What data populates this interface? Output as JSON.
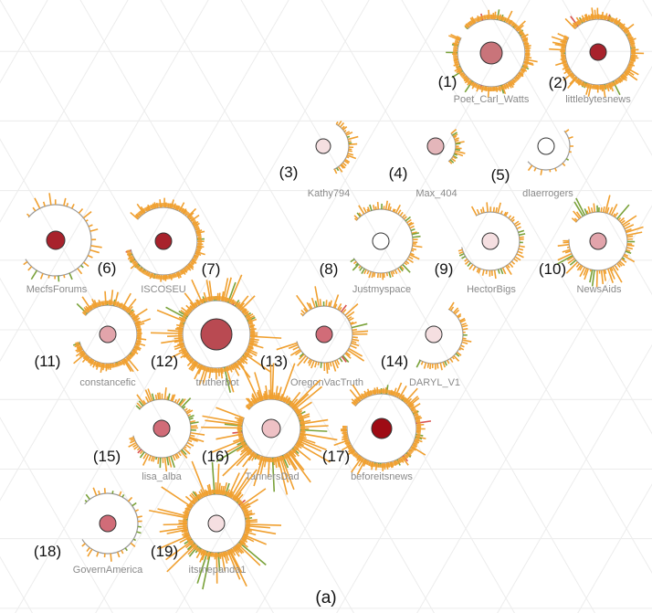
{
  "caption": "(a)",
  "colors": {
    "ring": "#999999",
    "spike_orange": "#f0a030",
    "spike_green": "#7aa23a",
    "spike_red": "#d9534f",
    "background_grid": "#ececec"
  },
  "nodes": [
    {
      "num": "(1)",
      "label": "Poet_Carl_Watts",
      "fill": "#c9747a",
      "coverage": 0.95,
      "density": 0.9
    },
    {
      "num": "(2)",
      "label": "littlebytesnews",
      "fill": "#a8222c",
      "coverage": 0.95,
      "density": 1.0
    },
    {
      "num": "(3)",
      "label": "Kathy794",
      "fill": "#f5dfe1",
      "coverage": 0.35,
      "density": 0.5
    },
    {
      "num": "(4)",
      "label": "Max_404",
      "fill": "#e4b6ba",
      "coverage": 0.25,
      "density": 0.4
    },
    {
      "num": "(5)",
      "label": "dlaerrogers",
      "fill": "#ffffff",
      "coverage": 0.5,
      "density": 0.05
    },
    {
      "num": "(6)",
      "label": "MecfsForums",
      "fill": "#a8222c",
      "coverage": 0.8,
      "density": 0.25
    },
    {
      "num": "(7)",
      "label": "ISCOSEU",
      "fill": "#a8222c",
      "coverage": 0.85,
      "density": 0.9
    },
    {
      "num": "(8)",
      "label": "Justmyspace",
      "fill": "#ffffff",
      "coverage": 0.8,
      "density": 0.7
    },
    {
      "num": "(9)",
      "label": "HectorBigs",
      "fill": "#f5dfe1",
      "coverage": 0.8,
      "density": 0.5
    },
    {
      "num": "(10)",
      "label": "NewsAids",
      "fill": "#e2a4ab",
      "coverage": 0.9,
      "density": 0.7
    },
    {
      "num": "(11)",
      "label": "constancefic",
      "fill": "#e2a4ab",
      "coverage": 0.85,
      "density": 0.85
    },
    {
      "num": "(12)",
      "label": "trutherbot",
      "fill": "#b94a52",
      "coverage": 1.0,
      "density": 1.0
    },
    {
      "num": "(13)",
      "label": "OregonVacTruth",
      "fill": "#d16c78",
      "coverage": 0.85,
      "density": 0.6
    },
    {
      "num": "(14)",
      "label": "DARYL_V1",
      "fill": "#f5dfe1",
      "coverage": 0.5,
      "density": 0.5
    },
    {
      "num": "(15)",
      "label": "lisa_alba",
      "fill": "#d16c78",
      "coverage": 0.85,
      "density": 0.7
    },
    {
      "num": "(16)",
      "label": "TannersDad",
      "fill": "#eec1c5",
      "coverage": 0.95,
      "density": 1.0
    },
    {
      "num": "(17)",
      "label": "beforeitsnews",
      "fill": "#9e0b14",
      "coverage": 0.9,
      "density": 1.0
    },
    {
      "num": "(18)",
      "label": "GovernAmerica",
      "fill": "#d16c78",
      "coverage": 0.8,
      "density": 0.2
    },
    {
      "num": "(19)",
      "label": "itsmepanda1",
      "fill": "#f5dfe1",
      "coverage": 1.0,
      "density": 1.0
    }
  ]
}
